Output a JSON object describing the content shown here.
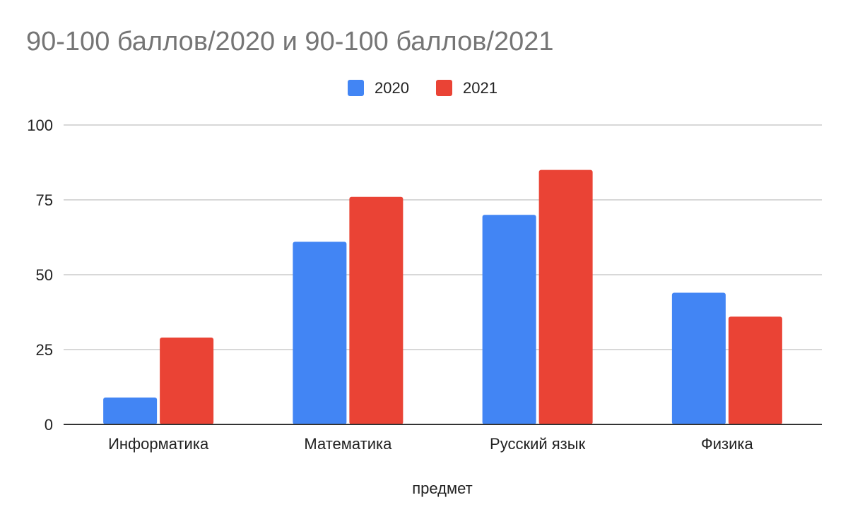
{
  "chart_data": {
    "type": "bar",
    "title": "90-100 баллов/2020 и 90-100 баллов/2021",
    "xlabel": "предмет",
    "ylabel": "",
    "categories": [
      "Информатика",
      "Математика",
      "Русский язык",
      "Физика"
    ],
    "series": [
      {
        "name": "2020",
        "color": "#4285f4",
        "values": [
          9,
          61,
          70,
          44
        ]
      },
      {
        "name": "2021",
        "color": "#ea4335",
        "values": [
          29,
          76,
          85,
          36
        ]
      }
    ],
    "ylim": [
      0,
      100
    ],
    "yticks": [
      "0",
      "25",
      "50",
      "75",
      "100"
    ],
    "ytick_values": [
      0,
      25,
      50,
      75,
      100
    ],
    "grid": true,
    "legend_position": "top-center",
    "colors": {
      "grid": "#cccccc",
      "axis": "#333333",
      "title": "#757575"
    }
  }
}
